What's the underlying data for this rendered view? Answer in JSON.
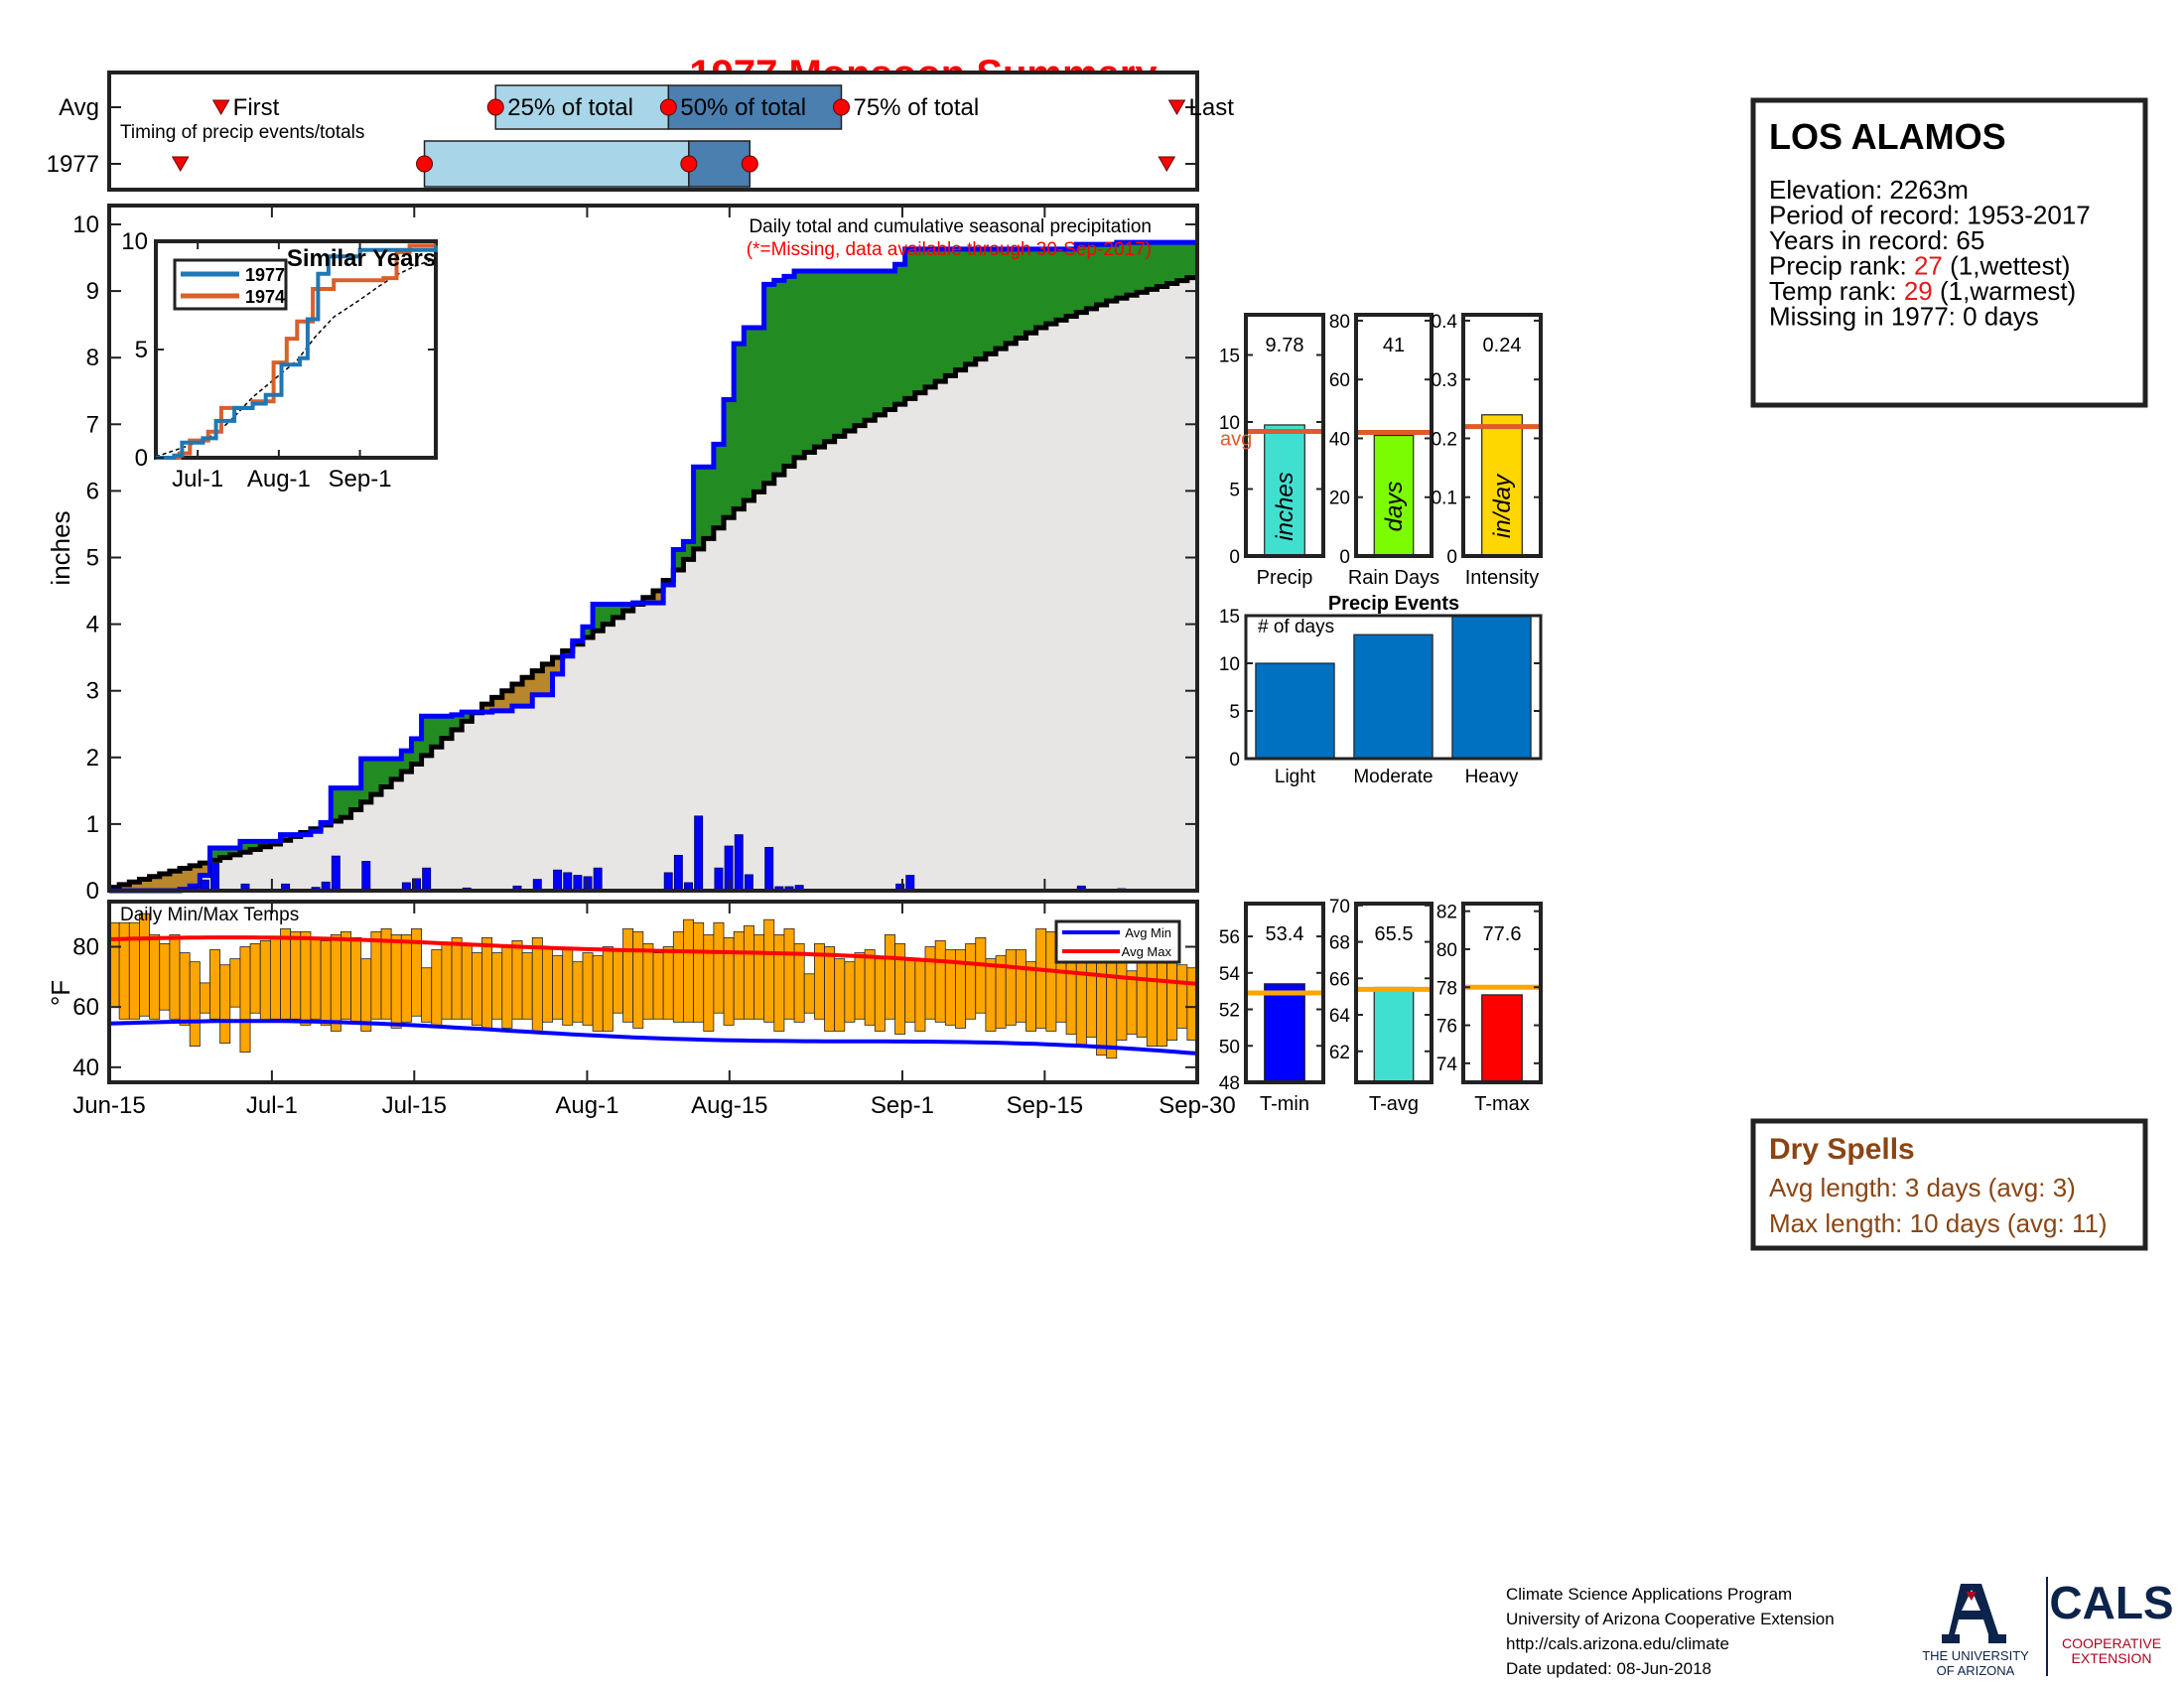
{
  "title": "1977 Monsoon Summary",
  "station": {
    "name": "LOS ALAMOS",
    "lines": [
      {
        "parts": [
          {
            "text": "Elevation: 2263m",
            "color": "#000000"
          }
        ]
      },
      {
        "parts": [
          {
            "text": "Period of record: 1953-2017",
            "color": "#000000"
          }
        ]
      },
      {
        "parts": [
          {
            "text": "Years in record: 65",
            "color": "#000000"
          }
        ]
      },
      {
        "parts": [
          {
            "text": "Precip rank: ",
            "color": "#000000"
          },
          {
            "text": "27",
            "color": "#e41a1c"
          },
          {
            "text": " (1,wettest)",
            "color": "#000000"
          }
        ]
      },
      {
        "parts": [
          {
            "text": "Temp rank: ",
            "color": "#000000"
          },
          {
            "text": "29",
            "color": "#e41a1c"
          },
          {
            "text": " (1,warmest)",
            "color": "#000000"
          }
        ]
      },
      {
        "parts": [
          {
            "text": "Missing in 1977: 0 days",
            "color": "#000000"
          }
        ]
      }
    ]
  },
  "dry_spells": {
    "title": "Dry Spells",
    "avg_line": "Avg length: 3 days (avg: 3)",
    "max_line": "Max length: 10 days (avg: 11)",
    "color": "#8b4513"
  },
  "footer": {
    "lines": [
      "Climate Science Applications Program",
      "University of Arizona Cooperative Extension",
      "http://cals.arizona.edu/climate",
      " Date updated: 08-Jun-2018"
    ],
    "logo_ua_line1": "THE UNIVERSITY",
    "logo_ua_line2": "OF ARIZONA",
    "logo_cals": "CALS",
    "logo_cals_sub1": "COOPERATIVE",
    "logo_cals_sub2": "EXTENSION"
  },
  "colors": {
    "green_fill": "#228b22",
    "brown_fill": "#b8862b",
    "gray_fill": "#e8e6e4",
    "cumulative_line": "#0000ff",
    "average_line": "#000000",
    "daily_bar": "#0000ff",
    "temp_bar": "#ffa500",
    "avg_min": "#0000ff",
    "avg_max": "#ff0000",
    "marker_red": "#ff0000",
    "timing_light": "#a8d5e8",
    "timing_dark": "#4a7fb0",
    "series_1977": "#1f77b4",
    "series_1974": "#d95f2b",
    "precip_bar": "#40e0d0",
    "raindays_bar": "#7cfc00",
    "intensity_bar": "#ffd700",
    "avg_mark_red": "#e05a2b",
    "events_bar": "#0070c0",
    "tmin_bar": "#0000ff",
    "tavg_bar": "#40e0d0",
    "tmax_bar": "#ff0000",
    "temp_avg_mark": "#ffa500"
  },
  "chart_data": [
    {
      "id": "timing",
      "type": "range",
      "title": "Timing of precip events/totals",
      "row_labels": [
        "Avg",
        "1977"
      ],
      "avg": {
        "first": "Jun-26",
        "p25": "Jul-23",
        "p50": "Aug-9",
        "p75": "Aug-26",
        "last": "Sep-28"
      },
      "year": {
        "first": "Jun-22",
        "p25": "Jul-16",
        "p50": "Aug-11",
        "p75": "Aug-17",
        "last": "Sep-27"
      },
      "labels": {
        "first": "First",
        "p25": "25% of total",
        "p50": "50% of total",
        "p75": "75% of total",
        "last": "Last"
      }
    },
    {
      "id": "precip_main",
      "type": "area",
      "ylabel": "inches",
      "ylim": [
        0,
        10
      ],
      "yticks": [
        0,
        1,
        2,
        3,
        4,
        5,
        6,
        7,
        8,
        9,
        10
      ],
      "x_range": [
        "1977-06-15",
        "1977-09-30"
      ],
      "xtick_labels": [
        "Jun-15",
        "Jul-1",
        "Jul-15",
        "Aug-1",
        "Aug-15",
        "Sep-1",
        "Sep-15",
        "Sep-30"
      ],
      "xtick_dates": [
        "1977-06-15",
        "1977-07-01",
        "1977-07-15",
        "1977-08-01",
        "1977-08-15",
        "1977-09-01",
        "1977-09-15",
        "1977-09-30"
      ],
      "annotation": "Daily total and cumulative seasonal precipitation",
      "annotation_red": "(*=Missing, data available through 30-Sep-2017)",
      "daily_precip": [
        [
          "1977-06-22",
          0.02
        ],
        [
          "1977-06-23",
          0.05
        ],
        [
          "1977-06-24",
          0.16
        ],
        [
          "1977-06-25",
          0.41
        ],
        [
          "1977-06-28",
          0.1
        ],
        [
          "1977-07-02",
          0.1
        ],
        [
          "1977-07-05",
          0.05
        ],
        [
          "1977-07-06",
          0.13
        ],
        [
          "1977-07-07",
          0.52
        ],
        [
          "1977-07-10",
          0.44
        ],
        [
          "1977-07-14",
          0.12
        ],
        [
          "1977-07-15",
          0.18
        ],
        [
          "1977-07-16",
          0.34
        ],
        [
          "1977-07-19",
          0.02
        ],
        [
          "1977-07-20",
          0.04
        ],
        [
          "1977-07-23",
          0.02
        ],
        [
          "1977-07-25",
          0.07
        ],
        [
          "1977-07-27",
          0.17
        ],
        [
          "1977-07-29",
          0.31
        ],
        [
          "1977-07-30",
          0.27
        ],
        [
          "1977-07-31",
          0.23
        ],
        [
          "1977-08-01",
          0.21
        ],
        [
          "1977-08-02",
          0.34
        ],
        [
          "1977-08-06",
          0.02
        ],
        [
          "1977-08-09",
          0.27
        ],
        [
          "1977-08-10",
          0.53
        ],
        [
          "1977-08-11",
          0.12
        ],
        [
          "1977-08-12",
          1.12
        ],
        [
          "1977-08-14",
          0.34
        ],
        [
          "1977-08-15",
          0.67
        ],
        [
          "1977-08-16",
          0.84
        ],
        [
          "1977-08-17",
          0.24
        ],
        [
          "1977-08-19",
          0.65
        ],
        [
          "1977-08-20",
          0.06
        ],
        [
          "1977-08-21",
          0.06
        ],
        [
          "1977-08-22",
          0.08
        ],
        [
          "1977-09-01",
          0.1
        ],
        [
          "1977-09-02",
          0.23
        ],
        [
          "1977-09-19",
          0.07
        ],
        [
          "1977-09-23",
          0.03
        ]
      ],
      "avg_cumulative": [
        [
          "1977-06-15",
          0.05
        ],
        [
          "1977-07-01",
          0.7
        ],
        [
          "1977-07-08",
          1.1
        ],
        [
          "1977-07-15",
          1.9
        ],
        [
          "1977-07-22",
          2.8
        ],
        [
          "1977-08-01",
          3.8
        ],
        [
          "1977-08-08",
          4.5
        ],
        [
          "1977-08-15",
          5.6
        ],
        [
          "1977-08-22",
          6.5
        ],
        [
          "1977-09-01",
          7.3
        ],
        [
          "1977-09-08",
          7.9
        ],
        [
          "1977-09-15",
          8.45
        ],
        [
          "1977-09-22",
          8.85
        ],
        [
          "1977-09-30",
          9.2
        ]
      ]
    },
    {
      "id": "similar_years",
      "type": "line",
      "title": "Similar Years",
      "ylim": [
        0,
        10
      ],
      "yticks": [
        0,
        5,
        10
      ],
      "xtick_labels": [
        "Jul-1",
        "Aug-1",
        "Sep-1"
      ],
      "xtick_dates": [
        "1977-07-01",
        "1977-08-01",
        "1977-09-01"
      ],
      "series": [
        {
          "name": "1977",
          "values": [
            [
              "1977-06-15",
              0
            ],
            [
              "1977-06-22",
              0.1
            ],
            [
              "1977-06-25",
              0.7
            ],
            [
              "1977-07-03",
              0.9
            ],
            [
              "1977-07-08",
              1.7
            ],
            [
              "1977-07-15",
              2.3
            ],
            [
              "1977-07-22",
              2.5
            ],
            [
              "1977-07-27",
              2.9
            ],
            [
              "1977-08-02",
              4.3
            ],
            [
              "1977-08-09",
              4.6
            ],
            [
              "1977-08-12",
              6.4
            ],
            [
              "1977-08-16",
              8.5
            ],
            [
              "1977-08-20",
              9.3
            ],
            [
              "1977-09-01",
              9.6
            ],
            [
              "1977-09-30",
              9.8
            ]
          ]
        },
        {
          "name": "1974",
          "values": [
            [
              "1977-06-15",
              0
            ],
            [
              "1977-06-24",
              0.2
            ],
            [
              "1977-06-28",
              0.8
            ],
            [
              "1977-07-05",
              1.2
            ],
            [
              "1977-07-10",
              2.3
            ],
            [
              "1977-07-22",
              2.6
            ],
            [
              "1977-07-30",
              4.4
            ],
            [
              "1977-08-04",
              5.5
            ],
            [
              "1977-08-08",
              6.3
            ],
            [
              "1977-08-14",
              7.8
            ],
            [
              "1977-08-22",
              8.2
            ],
            [
              "1977-09-10",
              8.3
            ],
            [
              "1977-09-15",
              9.5
            ],
            [
              "1977-09-20",
              9.8
            ],
            [
              "1977-09-30",
              9.8
            ]
          ]
        }
      ]
    },
    {
      "id": "temps",
      "type": "bar",
      "title": "Daily Min/Max Temps",
      "ylabel": "°F",
      "ylim": [
        35,
        95
      ],
      "yticks": [
        40,
        60,
        80
      ],
      "legend": [
        "Avg Min",
        "Avg Max"
      ],
      "legend_position": "top-right",
      "daily_min": [
        60,
        56,
        56,
        57,
        56,
        59,
        56,
        54,
        47,
        58,
        56,
        48,
        60,
        45,
        58,
        55,
        56,
        56,
        56,
        54,
        56,
        54,
        52,
        56,
        55,
        52,
        56,
        56,
        53,
        55,
        57,
        55,
        54,
        56,
        56,
        56,
        54,
        53,
        56,
        53,
        56,
        56,
        52,
        55,
        56,
        54,
        55,
        54,
        52,
        52,
        58,
        55,
        53,
        56,
        56,
        56,
        55,
        55,
        55,
        52,
        58,
        54,
        56,
        56,
        56,
        55,
        52,
        56,
        55,
        58,
        56,
        52,
        52,
        55,
        56,
        54,
        52,
        56,
        51,
        55,
        52,
        56,
        55,
        54,
        53,
        56,
        58,
        52,
        53,
        54,
        55,
        52,
        53,
        52,
        55,
        51,
        47,
        50,
        44,
        43,
        49,
        51,
        50,
        47,
        47,
        49,
        53,
        49
      ],
      "daily_max": [
        88,
        88,
        88,
        91,
        84,
        81,
        84,
        78,
        75,
        68,
        79,
        74,
        76,
        80,
        81,
        82,
        83,
        86,
        85,
        85,
        83,
        82,
        84,
        85,
        83,
        76,
        85,
        86,
        84,
        84,
        86,
        73,
        79,
        81,
        83,
        81,
        78,
        83,
        78,
        80,
        82,
        78,
        83,
        80,
        77,
        79,
        75,
        78,
        77,
        80,
        79,
        86,
        85,
        81,
        78,
        80,
        85,
        89,
        88,
        84,
        88,
        83,
        85,
        87,
        84,
        89,
        84,
        86,
        81,
        71,
        81,
        80,
        76,
        75,
        78,
        79,
        76,
        84,
        81,
        76,
        76,
        80,
        82,
        79,
        79,
        81,
        83,
        76,
        77,
        79,
        79,
        75,
        86,
        85,
        87,
        87,
        83,
        80,
        82,
        78,
        77,
        72,
        76,
        79,
        77,
        76,
        74,
        73
      ]
    },
    {
      "id": "summary_bars",
      "type": "bar",
      "panels": [
        {
          "label": "Precip",
          "unit": "inches",
          "value": 9.78,
          "value_text": "9.78",
          "avg": 9.3,
          "ylim": [
            0,
            18
          ],
          "yticks": [
            0,
            5,
            10,
            15
          ],
          "avg_label": "avg"
        },
        {
          "label": "Rain Days",
          "unit": "days",
          "value": 41,
          "value_text": "41",
          "avg": 42,
          "ylim": [
            0,
            82
          ],
          "yticks": [
            0,
            20,
            40,
            60,
            80
          ]
        },
        {
          "label": "Intensity",
          "unit": "in/day",
          "value": 0.24,
          "value_text": "0.24",
          "avg": 0.22,
          "ylim": [
            0,
            0.41
          ],
          "yticks": [
            0,
            0.1,
            0.2,
            0.3,
            0.4
          ]
        }
      ]
    },
    {
      "id": "precip_events",
      "type": "bar",
      "title": "Precip Events",
      "ylabel_inside": "# of days",
      "categories": [
        "Light",
        "Moderate",
        "Heavy"
      ],
      "values": [
        10,
        13,
        15
      ],
      "ylim": [
        0,
        15
      ],
      "yticks": [
        0,
        5,
        10,
        15
      ]
    },
    {
      "id": "temp_summary",
      "type": "bar",
      "panels": [
        {
          "label": "T-min",
          "value": 53.4,
          "value_text": "53.4",
          "avg": 52.9,
          "ylim": [
            48,
            57.8
          ],
          "yticks": [
            48,
            50,
            52,
            54,
            56
          ]
        },
        {
          "label": "T-avg",
          "value": 65.5,
          "value_text": "65.5",
          "avg": 65.4,
          "ylim": [
            60.3,
            70.1
          ],
          "yticks": [
            62,
            64,
            66,
            68,
            70
          ]
        },
        {
          "label": "T-max",
          "value": 77.6,
          "value_text": "77.6",
          "avg": 78.0,
          "ylim": [
            73,
            82.4
          ],
          "yticks": [
            74,
            76,
            78,
            80,
            82
          ]
        }
      ]
    }
  ]
}
